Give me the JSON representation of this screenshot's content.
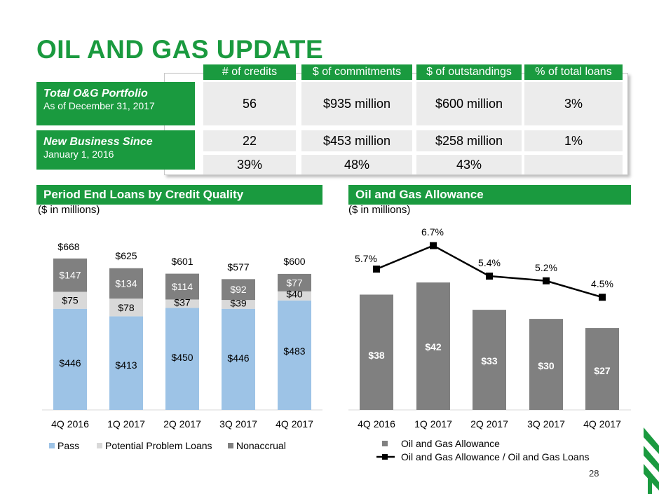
{
  "title": "OIL AND GAS UPDATE",
  "table": {
    "headers": [
      "# of credits",
      "$ of commitments",
      "$ of outstandings",
      "% of total loans"
    ],
    "rows": [
      {
        "label": "Total O&G Portfolio",
        "sublabel": "As of December 31, 2017",
        "values": [
          "56",
          "$935 million",
          "$600 million",
          "3%"
        ]
      },
      {
        "label": "New Business Since",
        "sublabel": "January 1, 2016",
        "values": [
          "22",
          "$453 million",
          "$258 million",
          "1%"
        ],
        "pct_values": [
          "39%",
          "48%",
          "43%",
          ""
        ]
      }
    ]
  },
  "left_section": {
    "title": "Period End Loans by Credit Quality",
    "unit": "($ in millions)"
  },
  "right_section": {
    "title": "Oil and Gas Allowance",
    "unit": "($ in millions)"
  },
  "page_number": "28",
  "chart_data": [
    {
      "type": "bar",
      "stacked": true,
      "categories": [
        "4Q 2016",
        "1Q 2017",
        "2Q 2017",
        "3Q 2017",
        "4Q 2017"
      ],
      "series": [
        {
          "name": "Pass",
          "values": [
            446,
            413,
            450,
            446,
            483
          ],
          "labels": [
            "$446",
            "$413",
            "$450",
            "$446",
            "$483"
          ],
          "color": "#9dc3e6"
        },
        {
          "name": "Potential Problem Loans",
          "values": [
            75,
            78,
            37,
            39,
            40
          ],
          "labels": [
            "$75",
            "$78",
            "$37",
            "$39",
            "$40"
          ],
          "color": "#d9d9d9"
        },
        {
          "name": "Nonaccrual",
          "values": [
            147,
            134,
            114,
            92,
            77
          ],
          "labels": [
            "$147",
            "$134",
            "$114",
            "$92",
            "$77"
          ],
          "color": "#808080"
        }
      ],
      "totals": [
        "$668",
        "$625",
        "$601",
        "$577",
        "$600"
      ],
      "ylim": [
        0,
        700
      ],
      "legend": "bottom"
    },
    {
      "type": "bar",
      "categories": [
        "4Q 2016",
        "1Q 2017",
        "2Q 2017",
        "3Q 2017",
        "4Q 2017"
      ],
      "series": [
        {
          "name": "Oil and Gas Allowance",
          "values": [
            38,
            42,
            33,
            30,
            27
          ],
          "labels": [
            "$38",
            "$42",
            "$33",
            "$30",
            "$27"
          ],
          "color": "#808080"
        }
      ],
      "line_series": {
        "name": "Oil and Gas Allowance / Oil and Gas Loans",
        "values": [
          5.7,
          6.7,
          5.4,
          5.2,
          4.5
        ],
        "labels": [
          "5.7%",
          "6.7%",
          "5.4%",
          "5.2%",
          "4.5%"
        ],
        "color": "#000000"
      },
      "ylim": [
        0,
        45
      ],
      "line_ylim": [
        0,
        7.5
      ],
      "legend": "bottom"
    }
  ]
}
